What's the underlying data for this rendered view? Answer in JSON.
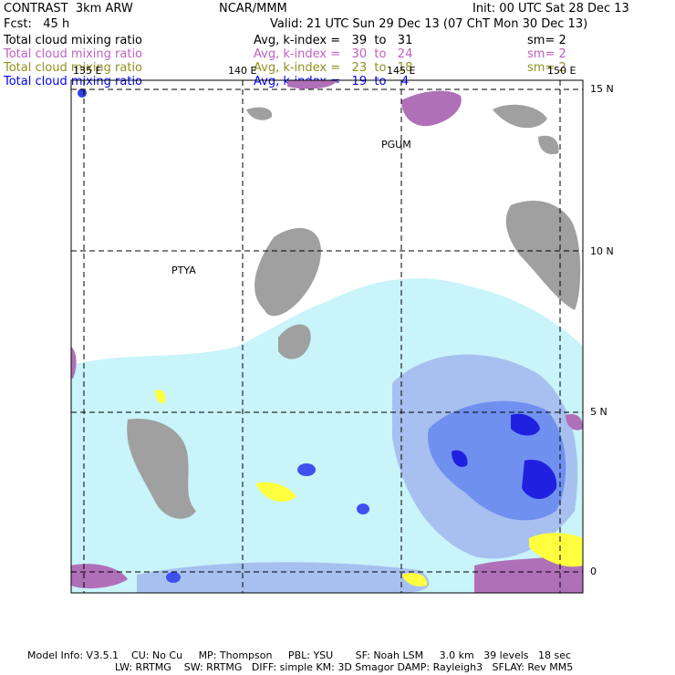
{
  "header": {
    "title": "CONTRAST  3km ARW",
    "center": "NCAR/MMM",
    "init": "Init: 00 UTC Sat 28 Dec 13",
    "fcst": "Fcst:   45 h",
    "valid": "Valid: 21 UTC Sun 29 Dec 13 (07 ChT Mon 30 Dec 13)"
  },
  "legend": [
    {
      "field": "Total cloud mixing ratio",
      "stat": "Avg, k-index =   39  to   31",
      "sm": "sm= 2",
      "color": "#000000"
    },
    {
      "field": "Total cloud mixing ratio",
      "stat": "Avg, k-index =   30  to   24",
      "sm": "sm= 2",
      "color": "#c060c0"
    },
    {
      "field": "Total cloud mixing ratio",
      "stat": "Avg, k-index =   23  to   18",
      "sm": "sm= 2",
      "color": "#909020"
    },
    {
      "field": "Total cloud mixing ratio",
      "stat": "Avg, k-index =   19  to    4",
      "sm": "",
      "color": "#0000ff"
    }
  ],
  "map": {
    "lon_labels": [
      "135 E",
      "140 E",
      "145 E",
      "150 E"
    ],
    "lat_labels": [
      "15 N",
      "10 N",
      "5 N",
      "0"
    ],
    "stations": [
      "PGUM",
      "PTYA"
    ],
    "colors": {
      "high_cloud": "#a0a0a0",
      "mid_cloud": "#b070b8",
      "low_cloud": "#ffff40",
      "light_blue": "#c8f4fa",
      "blue_mid": "#a8c0f0",
      "blue_deep": "#6080f0",
      "blue_core": "#2020e0"
    }
  },
  "footer": {
    "line1": "Model Info: V3.5.1    CU: No Cu     MP: Thompson     PBL: YSU       SF: Noah LSM     3.0 km   39 levels   18 sec",
    "line2": "LW: RRTMG    SW: RRTMG   DIFF: simple KM: 3D Smagor DAMP: Rayleigh3   SFLAY: Rev MM5"
  }
}
